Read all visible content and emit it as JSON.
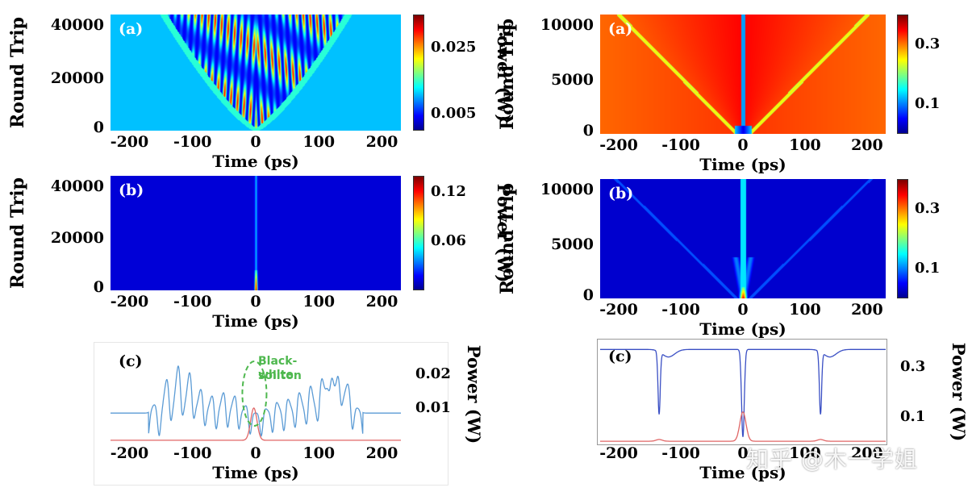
{
  "chart_data": [
    {
      "id": "left-a",
      "type": "heatmap",
      "panel_label": "(a)",
      "xlabel": "Time (ps)",
      "ylabel": "Round Trip",
      "colorbar_label": "Power (W)",
      "xlim": [
        -230,
        230
      ],
      "ylim": [
        0,
        44000
      ],
      "x_ticks": [
        -200,
        -100,
        0,
        100,
        200
      ],
      "y_ticks": [
        0,
        20000,
        40000
      ],
      "colorbar_ticks": [
        "0.025",
        "0.005"
      ],
      "colorbar_range": [
        0,
        0.035
      ],
      "background_level": 0.011
    },
    {
      "id": "left-b",
      "type": "heatmap",
      "panel_label": "(b)",
      "xlabel": "Time (ps)",
      "ylabel": "Round Trip",
      "colorbar_label": "Power (W)",
      "xlim": [
        -230,
        230
      ],
      "ylim": [
        0,
        44000
      ],
      "x_ticks": [
        -200,
        -100,
        0,
        100,
        200
      ],
      "y_ticks": [
        0,
        20000,
        40000
      ],
      "colorbar_ticks": [
        "0.12",
        "0.06"
      ],
      "colorbar_range": [
        0,
        0.14
      ],
      "background_level": 0.0
    },
    {
      "id": "left-c",
      "type": "line",
      "panel_label": "(c)",
      "xlabel": "Time (ps)",
      "ylabel": "Power (W)",
      "xlim": [
        -230,
        230
      ],
      "ylim": [
        0,
        0.028
      ],
      "x_ticks": [
        -200,
        -100,
        0,
        100,
        200
      ],
      "y_ticks": [
        "0.02",
        "0.01"
      ],
      "annotation": [
        "Black-white",
        "soliton"
      ],
      "series": [
        {
          "color": "#5b9bd5",
          "baseline": 0.0085,
          "peaks": [
            [
              -160,
              0.011
            ],
            [
              -140,
              0.019
            ],
            [
              -122,
              0.023
            ],
            [
              -104,
              0.021
            ],
            [
              -86,
              0.016
            ],
            [
              -68,
              0.014
            ],
            [
              -50,
              0.015
            ],
            [
              -32,
              0.014
            ],
            [
              -14,
              0.011
            ],
            [
              14,
              0.01
            ],
            [
              32,
              0.012
            ],
            [
              50,
              0.013
            ],
            [
              68,
              0.015
            ],
            [
              86,
              0.017
            ],
            [
              104,
              0.019
            ],
            [
              118,
              0.023
            ],
            [
              132,
              0.021
            ],
            [
              146,
              0.017
            ],
            [
              160,
              0.01
            ]
          ]
        },
        {
          "color": "#e06666",
          "baseline": 0.0005,
          "peaks": [
            [
              -3,
              0.01
            ]
          ]
        }
      ]
    },
    {
      "id": "right-a",
      "type": "heatmap",
      "panel_label": "(a)",
      "xlabel": "Time (ps)",
      "ylabel": "Round Trip",
      "colorbar_label": "Power (W)",
      "xlim": [
        -230,
        230
      ],
      "ylim": [
        0,
        11000
      ],
      "x_ticks": [
        -200,
        -100,
        0,
        100,
        200
      ],
      "y_ticks": [
        0,
        5000,
        10000
      ],
      "colorbar_ticks": [
        "0.3",
        "0.1"
      ],
      "colorbar_range": [
        0,
        0.4
      ],
      "background_level": 0.33
    },
    {
      "id": "right-b",
      "type": "heatmap",
      "panel_label": "(b)",
      "xlabel": "Time (ps)",
      "ylabel": "Round Trip",
      "colorbar_label": "Power (W)",
      "xlim": [
        -230,
        230
      ],
      "ylim": [
        0,
        11000
      ],
      "x_ticks": [
        -200,
        -100,
        0,
        100,
        200
      ],
      "y_ticks": [
        0,
        5000,
        10000
      ],
      "colorbar_ticks": [
        "0.3",
        "0.1"
      ],
      "colorbar_range": [
        0,
        0.4
      ],
      "background_level": 0.0
    },
    {
      "id": "right-c",
      "type": "line",
      "panel_label": "(c)",
      "xlabel": "Time (ps)",
      "ylabel": "Power (W)",
      "xlim": [
        -230,
        230
      ],
      "ylim": [
        0,
        0.4
      ],
      "x_ticks": [
        -200,
        -100,
        0,
        100,
        200
      ],
      "y_ticks": [
        "0.3",
        "0.1"
      ],
      "series": [
        {
          "color": "#3a4fc4",
          "baseline": 0.37,
          "dips": [
            [
              -135,
              0.12
            ],
            [
              0,
              0.02
            ],
            [
              125,
              0.12
            ]
          ]
        },
        {
          "color": "#e06666",
          "baseline": 0.003,
          "peaks": [
            [
              0,
              0.12
            ],
            [
              -135,
              0.01
            ],
            [
              125,
              0.01
            ]
          ]
        }
      ]
    }
  ],
  "watermark": "知乎 @木一学姐",
  "colors": {
    "jet": [
      "#00008f",
      "#0000ff",
      "#00ffff",
      "#ffff00",
      "#ff0000",
      "#800000"
    ],
    "line_blue": "#5b9bd5",
    "line_red": "#e06666",
    "annotation_green": "#4fb84f"
  }
}
